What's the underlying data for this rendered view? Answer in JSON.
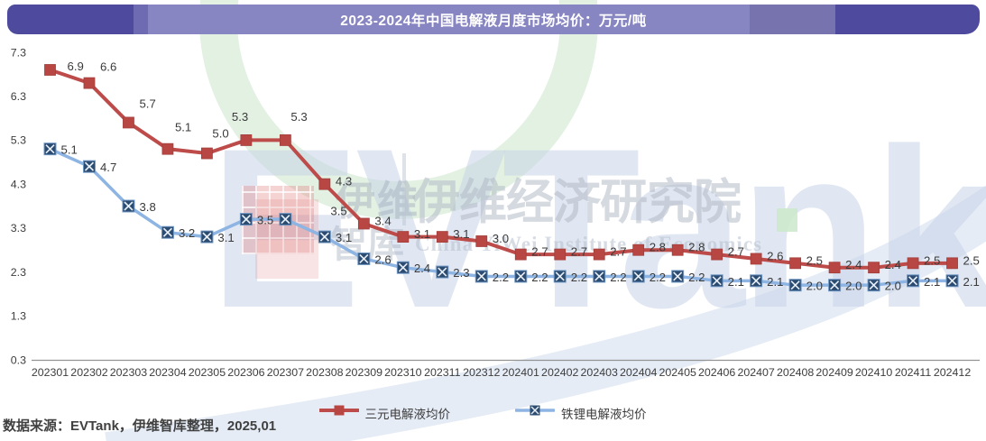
{
  "header": {
    "title": "2023-2024年中国电解液月度市场均价：万元/吨"
  },
  "chart_data": {
    "type": "line",
    "title": "2023-2024年中国电解液月度市场均价：万元/吨",
    "unit": "万元/吨",
    "categories": [
      "202301",
      "202302",
      "202303",
      "202304",
      "202305",
      "202306",
      "202307",
      "202308",
      "202309",
      "202310",
      "202311",
      "202312",
      "202401",
      "202402",
      "202403",
      "202404",
      "202405",
      "202406",
      "202407",
      "202408",
      "202409",
      "202410",
      "202411",
      "202412"
    ],
    "series": [
      {
        "name": "三元电解液均价",
        "marker": "square",
        "line_color": "#BD4B49",
        "marker_color": "#B84744",
        "values": [
          6.9,
          6.6,
          5.7,
          5.1,
          5.0,
          5.3,
          5.3,
          4.3,
          3.4,
          3.1,
          3.1,
          3.0,
          2.7,
          2.7,
          2.7,
          2.8,
          2.8,
          2.7,
          2.6,
          2.5,
          2.4,
          2.4,
          2.5,
          2.5
        ]
      },
      {
        "name": "铁锂电解液均价",
        "marker": "x-square",
        "line_color": "#8DB4E2",
        "marker_color": "#2B4B71",
        "values": [
          5.1,
          4.7,
          3.8,
          3.2,
          3.1,
          3.5,
          3.5,
          3.1,
          2.6,
          2.4,
          2.3,
          2.2,
          2.2,
          2.2,
          2.2,
          2.2,
          2.2,
          2.1,
          2.1,
          2.0,
          2.0,
          2.0,
          2.1,
          2.1
        ]
      }
    ],
    "ylim": [
      0.3,
      7.3
    ],
    "yticks": [
      7.3,
      6.3,
      5.3,
      4.3,
      3.3,
      2.3,
      1.3,
      0.3
    ],
    "grid": false,
    "legend_position": "bottom-center",
    "label_decimals": 1
  },
  "footer": {
    "source": "数据来源：EVTank，伊维智库整理，2025,01"
  },
  "watermark": {
    "brand": "EVTank",
    "cn_small": "伊维",
    "cn_small2": "智库",
    "cn_large": "伊维经济研究院",
    "en": "China YiWei Institute of Economics"
  },
  "colors": {
    "banner_dark": "#4E4B9E",
    "banner_mid": "#6E6BB2",
    "banner_light": "#8886C2",
    "banner_mid2": "#7673AE",
    "axis_line": "#939393",
    "tick_text": "#3D3D3D",
    "green_ring": "#D9EBD9",
    "swoosh": "#D6E1F0"
  }
}
